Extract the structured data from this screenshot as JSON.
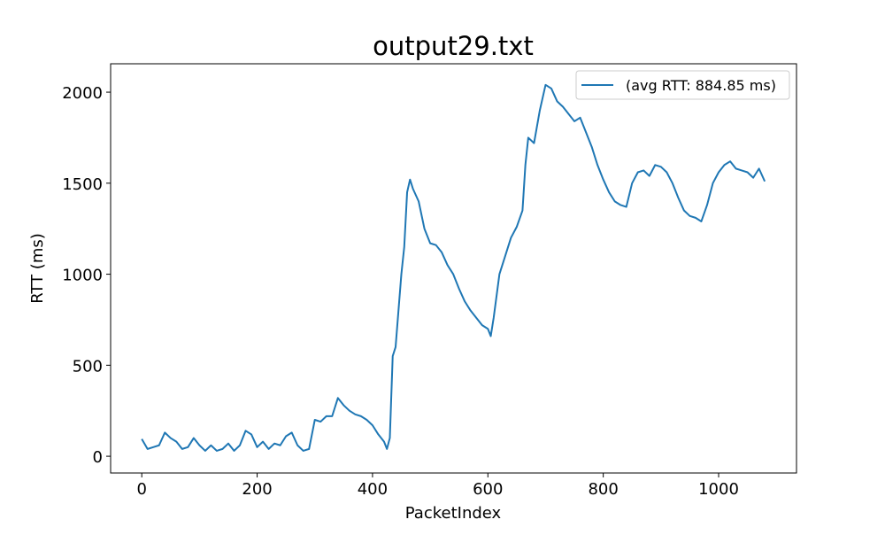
{
  "chart_data": {
    "type": "line",
    "title": "output29.txt",
    "x_label": "PacketIndex",
    "y_label": "RTT (ms)",
    "x": [
      0,
      10,
      20,
      30,
      40,
      50,
      60,
      70,
      80,
      90,
      100,
      110,
      120,
      130,
      140,
      150,
      160,
      170,
      180,
      190,
      200,
      210,
      220,
      230,
      240,
      250,
      260,
      270,
      280,
      290,
      300,
      310,
      320,
      330,
      340,
      350,
      360,
      370,
      380,
      390,
      400,
      410,
      420,
      425,
      430,
      435,
      440,
      450,
      455,
      460,
      465,
      470,
      480,
      490,
      500,
      510,
      520,
      530,
      540,
      550,
      560,
      570,
      580,
      590,
      600,
      605,
      610,
      620,
      630,
      640,
      650,
      660,
      665,
      670,
      680,
      690,
      700,
      710,
      720,
      730,
      740,
      750,
      760,
      770,
      780,
      790,
      800,
      810,
      820,
      830,
      840,
      850,
      860,
      870,
      880,
      890,
      900,
      910,
      920,
      930,
      940,
      950,
      960,
      970,
      980,
      990,
      1000,
      1010,
      1020,
      1030,
      1040,
      1050,
      1060,
      1070,
      1080
    ],
    "series": [
      {
        "name": "(avg RTT: 884.85 ms)",
        "color": "#1f77b4",
        "values": [
          95,
          40,
          50,
          60,
          130,
          100,
          80,
          40,
          50,
          100,
          60,
          30,
          60,
          30,
          40,
          70,
          30,
          60,
          140,
          120,
          50,
          80,
          40,
          70,
          60,
          110,
          130,
          60,
          30,
          40,
          200,
          190,
          220,
          220,
          320,
          280,
          250,
          230,
          220,
          200,
          170,
          120,
          80,
          40,
          100,
          550,
          600,
          1000,
          1150,
          1450,
          1520,
          1470,
          1400,
          1250,
          1170,
          1160,
          1120,
          1050,
          1000,
          920,
          850,
          800,
          760,
          720,
          700,
          660,
          760,
          1000,
          1100,
          1200,
          1260,
          1350,
          1600,
          1750,
          1720,
          1900,
          2040,
          2020,
          1950,
          1920,
          1880,
          1840,
          1860,
          1780,
          1700,
          1600,
          1520,
          1450,
          1400,
          1380,
          1370,
          1500,
          1560,
          1570,
          1540,
          1600,
          1590,
          1560,
          1500,
          1420,
          1350,
          1320,
          1310,
          1290,
          1380,
          1500,
          1560,
          1600,
          1620,
          1580,
          1570,
          1560,
          1530,
          1580,
          1510
        ]
      }
    ],
    "xlim": [
      -54,
      1135
    ],
    "ylim": [
      -92,
      2156
    ],
    "xticks": [
      0,
      200,
      400,
      600,
      800,
      1000
    ],
    "yticks": [
      0,
      500,
      1000,
      1500,
      2000
    ],
    "legend": "upper right"
  }
}
